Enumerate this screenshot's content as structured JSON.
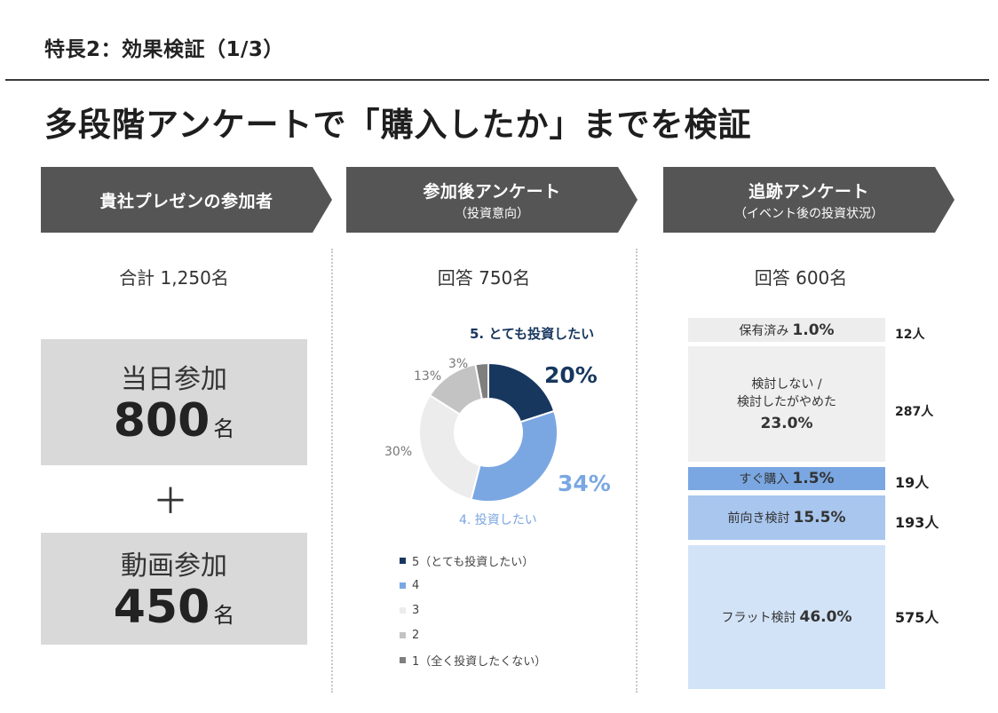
{
  "header": {
    "title": "特長2：効果検証（1/3）"
  },
  "main_title": "多段階アンケートで「購入したか」までを検証",
  "columns": [
    {
      "title": "貴社プレゼンの参加者",
      "subtitle": "",
      "count_label": "合計 1,250名"
    },
    {
      "title": "参加後アンケート",
      "subtitle": "（投資意向）",
      "count_label": "回答 750名"
    },
    {
      "title": "追跡アンケート",
      "subtitle": "（イベント後の投資状況）",
      "count_label": "回答 600名"
    }
  ],
  "participants": {
    "same_day": {
      "label": "当日参加",
      "number": "800",
      "unit": "名"
    },
    "plus": "＋",
    "video": {
      "label": "動画参加",
      "number": "450",
      "unit": "名"
    }
  },
  "donut": {
    "top_label": "5. とても投資したい",
    "bottom_label": "4. 投資したい",
    "pct_5": "20%",
    "pct_4": "34%",
    "pct_3": "30%",
    "pct_2": "13%",
    "pct_1": "3%",
    "legend": [
      {
        "label": "5（とても投資したい）",
        "color": "#17375e"
      },
      {
        "label": "4",
        "color": "#7aa7e2"
      },
      {
        "label": "3",
        "color": "#ececec"
      },
      {
        "label": "2",
        "color": "#c3c3c3"
      },
      {
        "label": "1（全く投資したくない）",
        "color": "#7f7f7f"
      }
    ]
  },
  "chart_data": {
    "type": "pie",
    "categories": [
      "5（とても投資したい）",
      "4",
      "3",
      "2",
      "1（全く投資したくない）"
    ],
    "values": [
      20,
      34,
      30,
      13,
      3
    ],
    "colors": [
      "#17375e",
      "#7aa7e2",
      "#ececec",
      "#c3c3c3",
      "#7f7f7f"
    ]
  },
  "tracking": [
    {
      "label": "保有済み",
      "value": "1.0%",
      "count": "12人",
      "color": "#ededed"
    },
    {
      "label": "検討しない /\n検討したがやめた",
      "value": "23.0%",
      "count": "287人",
      "color": "#efefef"
    },
    {
      "label": "すぐ購入",
      "value": "1.5%",
      "count": "19人",
      "color": "#7aa7e2"
    },
    {
      "label": "前向き検討",
      "value": "15.5%",
      "count": "193人",
      "color": "#a8c6ee"
    },
    {
      "label": "フラット検討",
      "value": "46.0%",
      "count": "575人",
      "color": "#d3e3f7"
    }
  ]
}
